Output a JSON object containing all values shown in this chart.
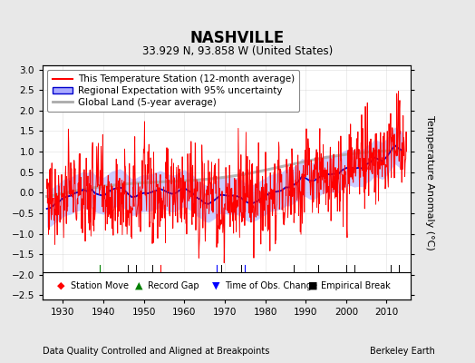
{
  "title": "NASHVILLE",
  "subtitle": "33.929 N, 93.858 W (United States)",
  "ylabel": "Temperature Anomaly (°C)",
  "xlabel_footer": "Data Quality Controlled and Aligned at Breakpoints",
  "footer_right": "Berkeley Earth",
  "ylim": [
    -2.6,
    3.1
  ],
  "xlim": [
    1925,
    2016
  ],
  "yticks": [
    -2.5,
    -2,
    -1.5,
    -1,
    -0.5,
    0,
    0.5,
    1,
    1.5,
    2,
    2.5,
    3
  ],
  "xticks": [
    1930,
    1940,
    1950,
    1960,
    1970,
    1980,
    1990,
    2000,
    2010
  ],
  "station_moves": [
    1954
  ],
  "record_gaps": [
    1939
  ],
  "time_obs_changes": [
    1968,
    1975
  ],
  "empirical_breaks": [
    1946,
    1948,
    1952,
    1969,
    1974,
    1987,
    1993,
    2000,
    2002,
    2011,
    2013
  ],
  "bg_color": "#e8e8e8",
  "plot_bg_color": "#ffffff",
  "station_color": "#ff0000",
  "regional_color": "#0000cc",
  "regional_fill_color": "#aaaaff",
  "global_color": "#aaaaaa",
  "legend_fontsize": 7.5,
  "title_fontsize": 12,
  "subtitle_fontsize": 8.5,
  "tick_fontsize": 7.5
}
